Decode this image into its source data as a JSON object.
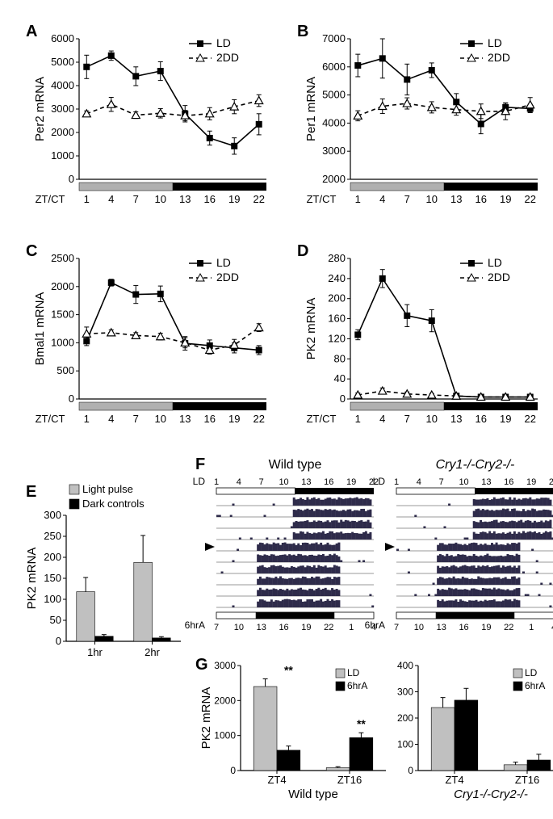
{
  "panelA": {
    "label": "A",
    "ylabel": "Per2 mRNA",
    "xlabel": "ZT/CT",
    "ylim": [
      0,
      6000
    ],
    "yticks": [
      0,
      1000,
      2000,
      3000,
      4000,
      5000,
      6000
    ],
    "xticks": [
      1,
      4,
      7,
      10,
      13,
      16,
      19,
      22
    ],
    "series": [
      {
        "name": "LD",
        "marker": "square",
        "dash": false,
        "color": "#000",
        "y": [
          4800,
          5280,
          4400,
          4620,
          2800,
          1760,
          1420,
          2350
        ],
        "yerr": [
          500,
          200,
          400,
          400,
          350,
          300,
          350,
          450
        ]
      },
      {
        "name": "2DD",
        "marker": "triangle",
        "dash": true,
        "color": "#000",
        "y": [
          2800,
          3200,
          2740,
          2820,
          2720,
          2800,
          3100,
          3360
        ],
        "yerr": [
          120,
          300,
          140,
          200,
          220,
          260,
          300,
          250
        ]
      }
    ],
    "lightbar": {
      "light_end_idx": 4
    }
  },
  "panelB": {
    "label": "B",
    "ylabel": "Per1 mRNA",
    "xlabel": "ZT/CT",
    "ylim": [
      2000,
      7000
    ],
    "yticks": [
      2000,
      3000,
      4000,
      5000,
      6000,
      7000
    ],
    "xticks": [
      1,
      4,
      7,
      10,
      13,
      16,
      19,
      22
    ],
    "series": [
      {
        "name": "LD",
        "marker": "square",
        "dash": false,
        "color": "#000",
        "y": [
          6050,
          6300,
          5550,
          5880,
          4750,
          3970,
          4560,
          4520
        ],
        "yerr": [
          400,
          700,
          550,
          260,
          300,
          350,
          150,
          150
        ]
      },
      {
        "name": "2DD",
        "marker": "triangle",
        "dash": true,
        "color": "#000",
        "y": [
          4260,
          4600,
          4700,
          4560,
          4480,
          4420,
          4420,
          4650
        ],
        "yerr": [
          180,
          260,
          200,
          200,
          200,
          260,
          300,
          260
        ]
      }
    ],
    "lightbar": {
      "light_end_idx": 4
    }
  },
  "panelC": {
    "label": "C",
    "ylabel": "Bmal1 mRNA",
    "xlabel": "ZT/CT",
    "ylim": [
      0,
      2500
    ],
    "yticks": [
      0,
      500,
      1000,
      1500,
      2000,
      2500
    ],
    "xticks": [
      1,
      4,
      7,
      10,
      13,
      16,
      19,
      22
    ],
    "series": [
      {
        "name": "LD",
        "marker": "square",
        "dash": false,
        "color": "#000",
        "y": [
          1030,
          2070,
          1860,
          1870,
          990,
          950,
          910,
          870
        ],
        "yerr": [
          80,
          60,
          160,
          140,
          120,
          100,
          90,
          80
        ]
      },
      {
        "name": "2DD",
        "marker": "triangle",
        "dash": true,
        "color": "#000",
        "y": [
          1160,
          1180,
          1130,
          1110,
          1000,
          870,
          960,
          1270
        ],
        "yerr": [
          120,
          50,
          50,
          60,
          90,
          70,
          100,
          70
        ]
      }
    ],
    "lightbar": {
      "light_end_idx": 4
    }
  },
  "panelD": {
    "label": "D",
    "ylabel": "PK2 mRNA",
    "xlabel": "ZT/CT",
    "ylim": [
      0,
      280
    ],
    "yticks": [
      0,
      40,
      80,
      120,
      160,
      200,
      240,
      280
    ],
    "xticks": [
      1,
      4,
      7,
      10,
      13,
      16,
      19,
      22
    ],
    "series": [
      {
        "name": "LD",
        "marker": "square",
        "dash": false,
        "color": "#000",
        "y": [
          128,
          240,
          166,
          156,
          6,
          4,
          4,
          4
        ],
        "yerr": [
          10,
          18,
          22,
          22,
          4,
          3,
          3,
          3
        ]
      },
      {
        "name": "2DD",
        "marker": "triangle",
        "dash": true,
        "color": "#000",
        "y": [
          8,
          16,
          10,
          8,
          6,
          4,
          4,
          4
        ],
        "yerr": [
          4,
          6,
          4,
          3,
          3,
          2,
          2,
          2
        ]
      }
    ],
    "lightbar": {
      "light_end_idx": 4
    }
  },
  "panelE": {
    "label": "E",
    "ylabel": "PK2 mRNA",
    "categories": [
      "1hr",
      "2hr"
    ],
    "ylim": [
      0,
      300
    ],
    "yticks": [
      0,
      50,
      100,
      150,
      200,
      250,
      300
    ],
    "legend": [
      "Light pulse",
      "Dark controls"
    ],
    "bars": [
      {
        "name": "Light pulse",
        "color": "#c0c0c0",
        "values": [
          118,
          188
        ],
        "yerr": [
          34,
          64
        ]
      },
      {
        "name": "Dark controls",
        "color": "#000",
        "values": [
          12,
          8
        ],
        "yerr": [
          4,
          3
        ]
      }
    ]
  },
  "panelF": {
    "label": "F",
    "left_title": "Wild type",
    "right_title": "Cry1-/-Cry2-/-",
    "top_label": "LD",
    "bottom_label": "6hrA",
    "top_ticks": [
      1,
      4,
      7,
      10,
      13,
      16,
      19,
      22
    ],
    "bottom_ticks": [
      7,
      10,
      13,
      16,
      19,
      22,
      1,
      4
    ],
    "bar_top": {
      "light": [
        0,
        0.5
      ],
      "dark": [
        0.5,
        1
      ]
    },
    "bar_bottom": {
      "dark": [
        0.25,
        0.75
      ]
    },
    "n_rows": 10,
    "arrow_row": 4,
    "activity_color": "#2e2b4a"
  },
  "panelG": {
    "label": "G",
    "ylabel": "PK2 mRNA",
    "left_title": "Wild type",
    "right_title": "Cry1-/-Cry2-/-",
    "categories": [
      "ZT4",
      "ZT16"
    ],
    "legend": [
      "LD",
      "6hrA"
    ],
    "left": {
      "ylim": [
        0,
        3000
      ],
      "yticks": [
        0,
        1000,
        2000,
        3000
      ],
      "bars": [
        {
          "name": "LD",
          "color": "#c0c0c0",
          "values": [
            2400,
            80
          ],
          "yerr": [
            220,
            30
          ]
        },
        {
          "name": "6hrA",
          "color": "#000",
          "values": [
            580,
            940
          ],
          "yerr": [
            120,
            140
          ]
        }
      ],
      "stars": [
        "**",
        "**"
      ]
    },
    "right": {
      "ylim": [
        0,
        400
      ],
      "yticks": [
        0,
        100,
        200,
        300,
        400
      ],
      "bars": [
        {
          "name": "LD",
          "color": "#c0c0c0",
          "values": [
            240,
            22
          ],
          "yerr": [
            38,
            10
          ]
        },
        {
          "name": "6hrA",
          "color": "#000",
          "values": [
            268,
            40
          ],
          "yerr": [
            45,
            22
          ]
        }
      ],
      "stars": [
        "",
        ""
      ]
    }
  },
  "style": {
    "axis_color": "#000",
    "grid": false,
    "font_size": 13,
    "marker_size": 5,
    "line_width": 1.5,
    "errbar_width": 1,
    "light_color": "#b0b0b0",
    "dark_color": "#000"
  }
}
